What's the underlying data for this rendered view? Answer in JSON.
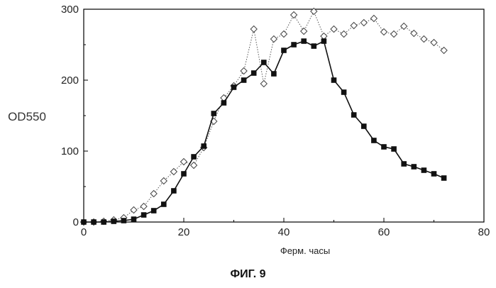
{
  "caption": "ФИГ. 9",
  "chart_data": {
    "type": "line",
    "title": "",
    "xlabel": "Ферм. часы",
    "ylabel": "OD550",
    "xlim": [
      0,
      80
    ],
    "ylim": [
      0,
      300
    ],
    "xticks": [
      "0",
      "20",
      "40",
      "60",
      "80"
    ],
    "yticks": [
      "0",
      "100",
      "200",
      "300"
    ],
    "grid": false,
    "series": [
      {
        "marker": "diamond-open",
        "line": "dotted",
        "x": [
          0,
          2,
          4,
          6,
          8,
          10,
          12,
          14,
          16,
          18,
          20,
          22,
          24,
          26,
          28,
          30,
          32,
          34,
          36,
          38,
          40,
          42,
          44,
          46,
          48,
          50,
          52,
          54,
          56,
          58,
          60,
          62,
          64,
          66,
          68,
          70,
          72
        ],
        "y": [
          0,
          0,
          1,
          3,
          6,
          17,
          22,
          40,
          58,
          71,
          85,
          80,
          105,
          142,
          175,
          192,
          213,
          272,
          195,
          258,
          265,
          292,
          269,
          297,
          262,
          272,
          265,
          277,
          281,
          287,
          268,
          265,
          276,
          266,
          258,
          253,
          242
        ]
      },
      {
        "marker": "square-filled",
        "line": "solid",
        "x": [
          0,
          2,
          4,
          6,
          8,
          10,
          12,
          14,
          16,
          18,
          20,
          22,
          24,
          26,
          28,
          30,
          32,
          34,
          36,
          38,
          40,
          42,
          44,
          46,
          48,
          50,
          52,
          54,
          56,
          58,
          60,
          62,
          64,
          66,
          68,
          70,
          72
        ],
        "y": [
          0,
          0,
          0,
          1,
          2,
          4,
          10,
          16,
          25,
          44,
          68,
          92,
          107,
          153,
          168,
          190,
          200,
          210,
          225,
          209,
          242,
          250,
          255,
          248,
          255,
          200,
          183,
          151,
          135,
          115,
          106,
          103,
          82,
          78,
          73,
          68,
          62
        ]
      }
    ]
  }
}
